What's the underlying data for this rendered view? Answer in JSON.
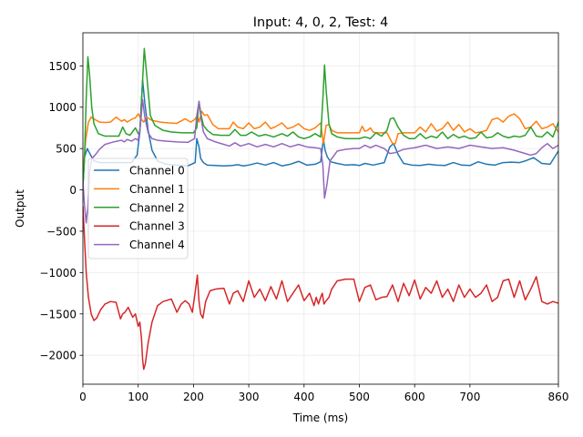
{
  "chart_data": {
    "type": "line",
    "title": "Input: 4, 0, 2, Test: 4",
    "xlabel": "Time (ms)",
    "ylabel": "Output",
    "xlim": [
      0,
      860
    ],
    "ylim": [
      -2350,
      1900
    ],
    "grid": true,
    "legend_position": "center-left",
    "xticks": [
      0,
      100,
      200,
      300,
      400,
      500,
      600,
      700,
      860
    ],
    "xtick_labels": [
      "0",
      "100",
      "200",
      "300",
      "400",
      "500",
      "600",
      "700",
      "860"
    ],
    "yticks": [
      -2000,
      -1500,
      -1000,
      -500,
      0,
      500,
      1000,
      1500
    ],
    "ytick_labels": [
      "−2000",
      "−1500",
      "−1000",
      "−500",
      "0",
      "500",
      "1000",
      "1500"
    ],
    "series": [
      {
        "name": "Channel 0",
        "color": "#1f77b4",
        "x": [
          0,
          3,
          8,
          14,
          20,
          30,
          45,
          60,
          75,
          88,
          98,
          103,
          108,
          112,
          118,
          125,
          135,
          150,
          170,
          190,
          203,
          206,
          210,
          213,
          218,
          225,
          240,
          255,
          270,
          280,
          290,
          300,
          315,
          330,
          345,
          360,
          375,
          390,
          405,
          420,
          430,
          435,
          438,
          442,
          448,
          460,
          475,
          490,
          500,
          510,
          525,
          545,
          555,
          562,
          570,
          580,
          595,
          610,
          625,
          640,
          655,
          670,
          685,
          700,
          715,
          730,
          745,
          760,
          775,
          790,
          800,
          815,
          830,
          845,
          860
        ],
        "y": [
          20,
          400,
          500,
          420,
          350,
          330,
          330,
          330,
          330,
          330,
          420,
          700,
          1330,
          1050,
          720,
          480,
          350,
          310,
          300,
          290,
          330,
          620,
          520,
          380,
          330,
          300,
          295,
          290,
          295,
          305,
          290,
          300,
          325,
          300,
          330,
          290,
          310,
          345,
          300,
          310,
          340,
          620,
          480,
          400,
          340,
          320,
          300,
          305,
          295,
          320,
          300,
          330,
          520,
          560,
          430,
          320,
          300,
          295,
          310,
          300,
          295,
          330,
          300,
          295,
          340,
          310,
          300,
          330,
          335,
          330,
          350,
          390,
          320,
          310,
          470
        ]
      },
      {
        "name": "Channel 1",
        "color": "#ff7f0e",
        "x": [
          0,
          5,
          10,
          15,
          22,
          30,
          40,
          50,
          60,
          70,
          75,
          80,
          85,
          90,
          95,
          100,
          105,
          110,
          115,
          125,
          140,
          155,
          170,
          185,
          195,
          202,
          207,
          210,
          215,
          220,
          225,
          235,
          245,
          255,
          265,
          272,
          280,
          290,
          300,
          310,
          320,
          330,
          340,
          350,
          360,
          370,
          380,
          390,
          400,
          410,
          420,
          430,
          435,
          440,
          445,
          450,
          460,
          475,
          490,
          500,
          505,
          510,
          515,
          520,
          525,
          530,
          540,
          550,
          560,
          565,
          570,
          580,
          600,
          610,
          620,
          630,
          640,
          650,
          660,
          670,
          680,
          690,
          700,
          710,
          720,
          730,
          740,
          750,
          760,
          770,
          780,
          790,
          800,
          810,
          820,
          830,
          840,
          850,
          860
        ],
        "y": [
          200,
          600,
          820,
          880,
          850,
          820,
          815,
          820,
          880,
          830,
          850,
          820,
          840,
          860,
          870,
          920,
          860,
          820,
          880,
          840,
          820,
          810,
          805,
          860,
          820,
          850,
          900,
          820,
          950,
          900,
          910,
          790,
          740,
          740,
          740,
          820,
          760,
          740,
          810,
          740,
          760,
          820,
          740,
          770,
          810,
          740,
          760,
          800,
          740,
          720,
          750,
          810,
          560,
          780,
          790,
          720,
          690,
          690,
          690,
          690,
          770,
          710,
          720,
          750,
          700,
          690,
          690,
          690,
          560,
          560,
          680,
          690,
          690,
          760,
          700,
          800,
          710,
          740,
          820,
          720,
          790,
          700,
          740,
          690,
          700,
          720,
          850,
          870,
          820,
          890,
          920,
          860,
          740,
          760,
          830,
          740,
          760,
          800,
          700
        ]
      },
      {
        "name": "Channel 2",
        "color": "#2ca02c",
        "x": [
          0,
          3,
          6,
          9,
          12,
          16,
          20,
          28,
          40,
          55,
          65,
          72,
          78,
          85,
          95,
          100,
          103,
          107,
          111,
          116,
          122,
          130,
          145,
          160,
          180,
          200,
          206,
          210,
          214,
          218,
          225,
          235,
          250,
          265,
          275,
          285,
          295,
          305,
          318,
          330,
          345,
          360,
          370,
          380,
          390,
          400,
          410,
          420,
          430,
          434,
          437,
          440,
          445,
          450,
          460,
          475,
          490,
          500,
          510,
          520,
          530,
          540,
          550,
          556,
          562,
          570,
          580,
          590,
          600,
          610,
          620,
          630,
          640,
          650,
          660,
          670,
          680,
          690,
          700,
          710,
          720,
          730,
          740,
          750,
          760,
          770,
          780,
          790,
          800,
          810,
          820,
          830,
          840,
          850,
          860
        ],
        "y": [
          50,
          400,
          1100,
          1610,
          1400,
          1000,
          800,
          680,
          650,
          650,
          650,
          760,
          680,
          660,
          750,
          680,
          700,
          1200,
          1710,
          1350,
          900,
          780,
          720,
          700,
          690,
          690,
          750,
          1070,
          900,
          780,
          720,
          670,
          660,
          660,
          730,
          660,
          660,
          700,
          650,
          670,
          640,
          680,
          650,
          700,
          640,
          620,
          640,
          680,
          640,
          1100,
          1510,
          1200,
          800,
          680,
          640,
          620,
          620,
          620,
          640,
          620,
          690,
          650,
          720,
          860,
          870,
          760,
          660,
          620,
          620,
          680,
          620,
          650,
          630,
          700,
          620,
          670,
          630,
          650,
          620,
          630,
          700,
          630,
          640,
          690,
          650,
          630,
          650,
          640,
          660,
          760,
          650,
          640,
          700,
          640,
          820
        ]
      },
      {
        "name": "Channel 3",
        "color": "#d62728",
        "x": [
          0,
          3,
          6,
          10,
          15,
          20,
          25,
          32,
          40,
          50,
          60,
          68,
          72,
          76,
          82,
          90,
          95,
          100,
          103,
          106,
          108,
          110,
          113,
          118,
          125,
          135,
          145,
          160,
          170,
          178,
          185,
          192,
          198,
          203,
          207,
          210,
          213,
          217,
          222,
          230,
          240,
          255,
          265,
          272,
          280,
          290,
          300,
          310,
          320,
          330,
          340,
          350,
          360,
          370,
          380,
          390,
          400,
          410,
          418,
          422,
          426,
          430,
          433,
          436,
          440,
          445,
          450,
          460,
          475,
          490,
          500,
          510,
          520,
          530,
          540,
          550,
          560,
          570,
          580,
          590,
          600,
          610,
          620,
          630,
          640,
          650,
          660,
          670,
          680,
          690,
          700,
          710,
          720,
          730,
          740,
          750,
          760,
          770,
          780,
          790,
          800,
          810,
          820,
          830,
          840,
          850,
          860
        ],
        "y": [
          -200,
          -600,
          -1000,
          -1300,
          -1500,
          -1580,
          -1550,
          -1450,
          -1380,
          -1350,
          -1360,
          -1560,
          -1500,
          -1480,
          -1420,
          -1540,
          -1500,
          -1650,
          -1600,
          -1800,
          -2050,
          -2170,
          -2100,
          -1850,
          -1600,
          -1400,
          -1350,
          -1320,
          -1480,
          -1380,
          -1340,
          -1380,
          -1480,
          -1240,
          -1030,
          -1350,
          -1500,
          -1550,
          -1350,
          -1220,
          -1200,
          -1190,
          -1380,
          -1250,
          -1220,
          -1350,
          -1100,
          -1300,
          -1200,
          -1340,
          -1170,
          -1320,
          -1100,
          -1350,
          -1250,
          -1150,
          -1340,
          -1250,
          -1400,
          -1300,
          -1380,
          -1300,
          -1250,
          -1380,
          -1340,
          -1300,
          -1200,
          -1100,
          -1080,
          -1080,
          -1350,
          -1180,
          -1150,
          -1330,
          -1300,
          -1290,
          -1150,
          -1350,
          -1130,
          -1280,
          -1090,
          -1320,
          -1180,
          -1250,
          -1100,
          -1300,
          -1200,
          -1350,
          -1150,
          -1300,
          -1200,
          -1300,
          -1250,
          -1150,
          -1350,
          -1300,
          -1100,
          -1080,
          -1300,
          -1100,
          -1330,
          -1200,
          -1050,
          -1350,
          -1380,
          -1350,
          -1370
        ]
      },
      {
        "name": "Channel 4",
        "color": "#9467bd",
        "x": [
          0,
          3,
          6,
          9,
          12,
          16,
          22,
          30,
          40,
          50,
          62,
          70,
          75,
          80,
          88,
          95,
          100,
          104,
          108,
          112,
          118,
          125,
          135,
          150,
          170,
          190,
          202,
          206,
          210,
          214,
          218,
          225,
          240,
          255,
          265,
          275,
          285,
          300,
          315,
          330,
          345,
          360,
          375,
          390,
          405,
          420,
          430,
          434,
          437,
          441,
          447,
          460,
          475,
          490,
          500,
          510,
          520,
          530,
          545,
          555,
          565,
          580,
          600,
          620,
          640,
          660,
          680,
          700,
          720,
          740,
          760,
          780,
          800,
          810,
          820,
          830,
          840,
          850,
          860
        ],
        "y": [
          100,
          -200,
          -400,
          -200,
          200,
          380,
          420,
          490,
          550,
          570,
          590,
          600,
          580,
          610,
          590,
          620,
          600,
          780,
          1090,
          880,
          690,
          620,
          600,
          590,
          580,
          575,
          620,
          900,
          1070,
          850,
          700,
          620,
          580,
          550,
          530,
          570,
          530,
          560,
          520,
          550,
          520,
          560,
          520,
          550,
          520,
          510,
          500,
          300,
          -100,
          50,
          350,
          470,
          490,
          500,
          500,
          540,
          510,
          540,
          500,
          440,
          450,
          490,
          510,
          540,
          500,
          520,
          500,
          540,
          520,
          500,
          510,
          480,
          440,
          420,
          440,
          510,
          560,
          500,
          540
        ]
      }
    ]
  }
}
